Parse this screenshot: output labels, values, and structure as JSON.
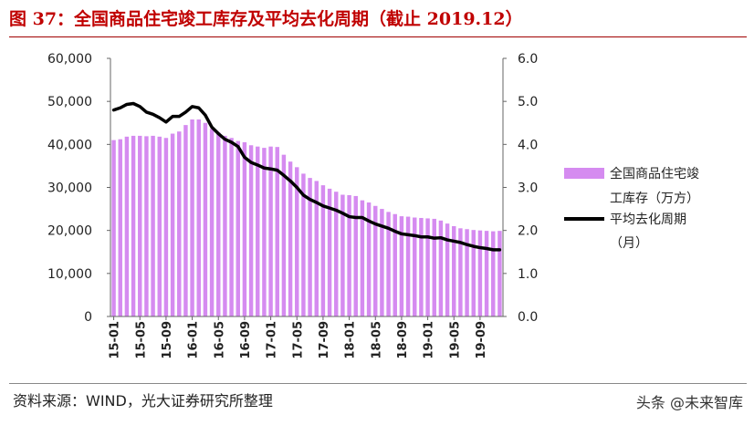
{
  "title": "图 37：全国商品住宅竣工库存及平均去化周期（截止 2019.12）",
  "source": "资料来源：WIND，光大证券研究所整理",
  "watermark": "头条 @未来智库",
  "colors": {
    "bar": "#d58bf0",
    "line": "#000000",
    "title": "#c00000"
  },
  "chart_data": {
    "type": "bar",
    "left_axis": {
      "ylim": [
        0,
        60000
      ],
      "ticks": [
        "0",
        "10,000",
        "20,000",
        "30,000",
        "40,000",
        "50,000",
        "60,000"
      ],
      "tick_values": [
        0,
        10000,
        20000,
        30000,
        40000,
        50000,
        60000
      ]
    },
    "right_axis": {
      "ylim": [
        0,
        6
      ],
      "ticks": [
        "0.0",
        "1.0",
        "2.0",
        "3.0",
        "4.0",
        "5.0",
        "6.0"
      ],
      "tick_values": [
        0,
        1,
        2,
        3,
        4,
        5,
        6
      ]
    },
    "x_tick_labels": [
      "15-01",
      "15-05",
      "15-09",
      "16-01",
      "16-05",
      "16-09",
      "17-01",
      "17-05",
      "17-09",
      "18-01",
      "18-05",
      "18-09",
      "19-01",
      "19-05",
      "19-09"
    ],
    "x_tick_every": 4,
    "categories": [
      "15-01",
      "15-02",
      "15-03",
      "15-04",
      "15-05",
      "15-06",
      "15-07",
      "15-08",
      "15-09",
      "15-10",
      "15-11",
      "15-12",
      "16-01",
      "16-02",
      "16-03",
      "16-04",
      "16-05",
      "16-06",
      "16-07",
      "16-08",
      "16-09",
      "16-10",
      "16-11",
      "16-12",
      "17-01",
      "17-02",
      "17-03",
      "17-04",
      "17-05",
      "17-06",
      "17-07",
      "17-08",
      "17-09",
      "17-10",
      "17-11",
      "17-12",
      "18-01",
      "18-02",
      "18-03",
      "18-04",
      "18-05",
      "18-06",
      "18-07",
      "18-08",
      "18-09",
      "18-10",
      "18-11",
      "18-12",
      "19-01",
      "19-02",
      "19-03",
      "19-04",
      "19-05",
      "19-06",
      "19-07",
      "19-08",
      "19-09",
      "19-10",
      "19-11",
      "19-12"
    ],
    "series": [
      {
        "name": "全国商品住宅竣工库存（万方）",
        "type": "bar",
        "axis": "left",
        "values": [
          41000,
          41200,
          41800,
          42000,
          42000,
          41900,
          42000,
          41800,
          41500,
          42500,
          43000,
          44500,
          45800,
          45800,
          45000,
          43600,
          42800,
          42000,
          41500,
          40800,
          40500,
          39800,
          39500,
          39200,
          39500,
          39400,
          37600,
          36000,
          34700,
          33200,
          32200,
          31500,
          30500,
          29700,
          29000,
          28300,
          28200,
          28000,
          27000,
          26500,
          25700,
          25000,
          24300,
          23800,
          23300,
          23200,
          23000,
          22900,
          22800,
          22700,
          22300,
          21600,
          21000,
          20500,
          20300,
          20100,
          20000,
          19900,
          19800,
          19900
        ]
      },
      {
        "name": "平均去化周期（月）",
        "type": "line",
        "axis": "right",
        "values": [
          4.8,
          4.85,
          4.93,
          4.95,
          4.88,
          4.75,
          4.7,
          4.62,
          4.52,
          4.65,
          4.65,
          4.75,
          4.88,
          4.85,
          4.68,
          4.4,
          4.25,
          4.12,
          4.05,
          3.95,
          3.7,
          3.58,
          3.52,
          3.45,
          3.43,
          3.4,
          3.28,
          3.15,
          3.0,
          2.82,
          2.72,
          2.65,
          2.57,
          2.52,
          2.47,
          2.4,
          2.32,
          2.3,
          2.3,
          2.22,
          2.15,
          2.1,
          2.05,
          1.98,
          1.92,
          1.9,
          1.88,
          1.85,
          1.85,
          1.82,
          1.83,
          1.78,
          1.75,
          1.72,
          1.67,
          1.63,
          1.6,
          1.58,
          1.55,
          1.55
        ]
      }
    ],
    "legend": [
      {
        "label_lines": [
          "全国商品住宅竣",
          "工库存（万方）"
        ],
        "kind": "bar"
      },
      {
        "label_lines": [
          "平均去化周期",
          "（月）"
        ],
        "kind": "line"
      }
    ],
    "legend_position": "right"
  }
}
